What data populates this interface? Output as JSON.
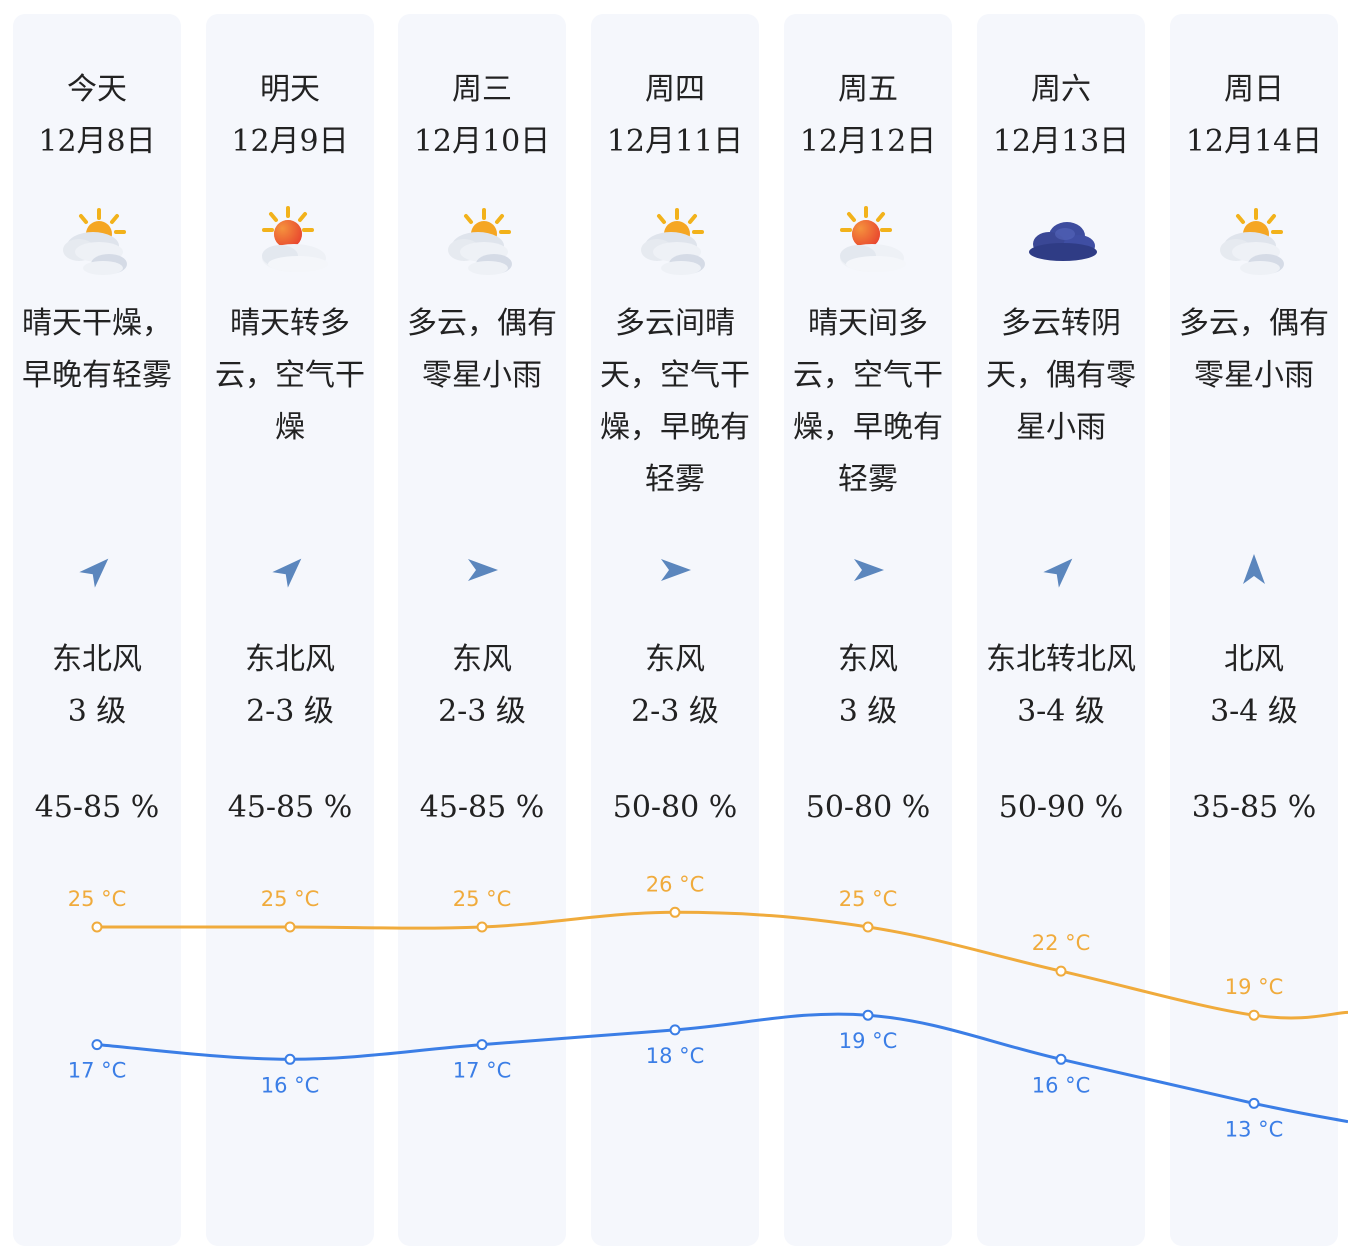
{
  "colors": {
    "high": "#f0ab3c",
    "low": "#3b7ee6",
    "column_bg": "#f5f7fc",
    "arrow": "#5b86bd"
  },
  "days": [
    {
      "day": "今天",
      "date": "12月8日",
      "icon": "partly-cloudy-icon",
      "desc": "晴天干燥，早晚有轻雾",
      "wind_dir": "东北风",
      "wind_level": "3 级",
      "wind_arrow_deg": 225,
      "humidity": "45-85 %"
    },
    {
      "day": "明天",
      "date": "12月9日",
      "icon": "sun-cloud-icon",
      "desc": "晴天转多云，空气干燥",
      "wind_dir": "东北风",
      "wind_level": "2-3 级",
      "wind_arrow_deg": 225,
      "humidity": "45-85 %"
    },
    {
      "day": "周三",
      "date": "12月10日",
      "icon": "partly-cloudy-icon",
      "desc": "多云，偶有零星小雨",
      "wind_dir": "东风",
      "wind_level": "2-3 级",
      "wind_arrow_deg": 270,
      "humidity": "45-85 %"
    },
    {
      "day": "周四",
      "date": "12月11日",
      "icon": "partly-cloudy-icon",
      "desc": "多云间晴天，空气干燥，早晚有轻雾",
      "wind_dir": "东风",
      "wind_level": "2-3 级",
      "wind_arrow_deg": 270,
      "humidity": "50-80 %"
    },
    {
      "day": "周五",
      "date": "12月12日",
      "icon": "sun-cloud-icon",
      "desc": "晴天间多云，空气干燥，早晚有轻雾",
      "wind_dir": "东风",
      "wind_level": "3 级",
      "wind_arrow_deg": 270,
      "humidity": "50-80 %"
    },
    {
      "day": "周六",
      "date": "12月13日",
      "icon": "overcast-cloud-icon",
      "desc": "多云转阴天，偶有零星小雨",
      "wind_dir": "东北转北风",
      "wind_level": "3-4 级",
      "wind_arrow_deg": 225,
      "humidity": "50-90 %"
    },
    {
      "day": "周日",
      "date": "12月14日",
      "icon": "partly-cloudy-icon",
      "desc": "多云，偶有零星小雨",
      "wind_dir": "北风",
      "wind_level": "3-4 级",
      "wind_arrow_deg": 180,
      "humidity": "35-85 %"
    }
  ],
  "chart_data": {
    "type": "line",
    "categories": [
      "12月8日",
      "12月9日",
      "12月10日",
      "12月11日",
      "12月12日",
      "12月13日",
      "12月14日"
    ],
    "unit": "°C",
    "series": [
      {
        "values": [
          25,
          25,
          25,
          26,
          25,
          22,
          19
        ],
        "color": "#f0ab3c"
      },
      {
        "values": [
          17,
          16,
          17,
          18,
          19,
          16,
          13
        ],
        "color": "#3b7ee6"
      }
    ],
    "data_labels": true,
    "axes_visible": false,
    "grid": false
  }
}
